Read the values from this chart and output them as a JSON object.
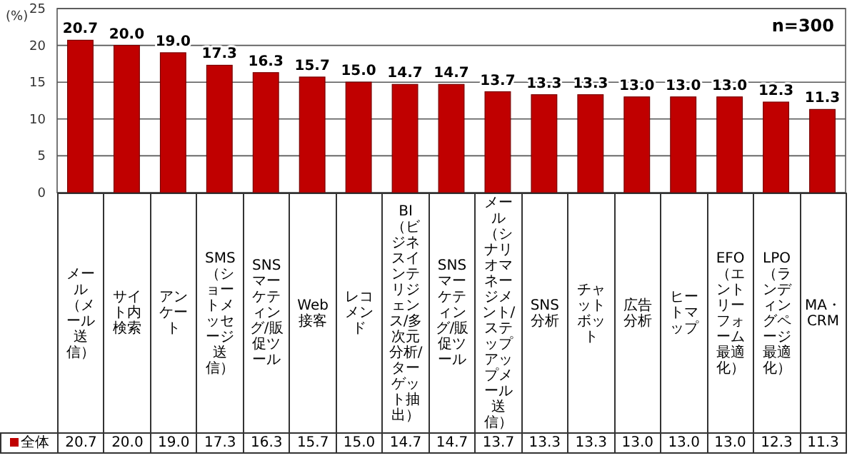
{
  "chart_data": {
    "type": "bar",
    "ylabel": "(%)",
    "annotations": [
      "n=300"
    ],
    "categories": [
      "メール（メール送信）",
      "サイト内検索",
      "アンケート",
      "SMS（ショートメッセージ送信）",
      "SNSマーケティング/販促ツール",
      "Web接客",
      "レコメンド",
      "BI（ビジネスインテリジェンス/多次元分析/ターゲット抽出）",
      "SNSマーケティング/販促ツール",
      "メール（シナリオマネージメント/ステップアップメール送信）",
      "SNS分析",
      "チャットボット",
      "広告分析",
      "ヒートマップ",
      "EFO（エントリーフォーム最適化）",
      "LPO（ランディングページ最適化）",
      "MA・CRM"
    ],
    "series": [
      {
        "name": "全体",
        "color": "#c00000",
        "values": [
          20.7,
          20.0,
          19.0,
          17.3,
          16.3,
          15.7,
          15.0,
          14.7,
          14.7,
          13.7,
          13.3,
          13.3,
          13.0,
          13.0,
          13.0,
          12.3,
          11.3
        ],
        "value_labels": [
          "20.7",
          "20.0",
          "19.0",
          "17.3",
          "16.3",
          "15.7",
          "15.0",
          "14.7",
          "14.7",
          "13.7",
          "13.3",
          "13.3",
          "13.0",
          "13.0",
          "13.0",
          "12.3",
          "11.3"
        ]
      }
    ],
    "ylim": [
      0,
      25
    ],
    "yticks": [
      0,
      5,
      10,
      15,
      20,
      25
    ],
    "grid": "y",
    "legend": "bottom left"
  }
}
